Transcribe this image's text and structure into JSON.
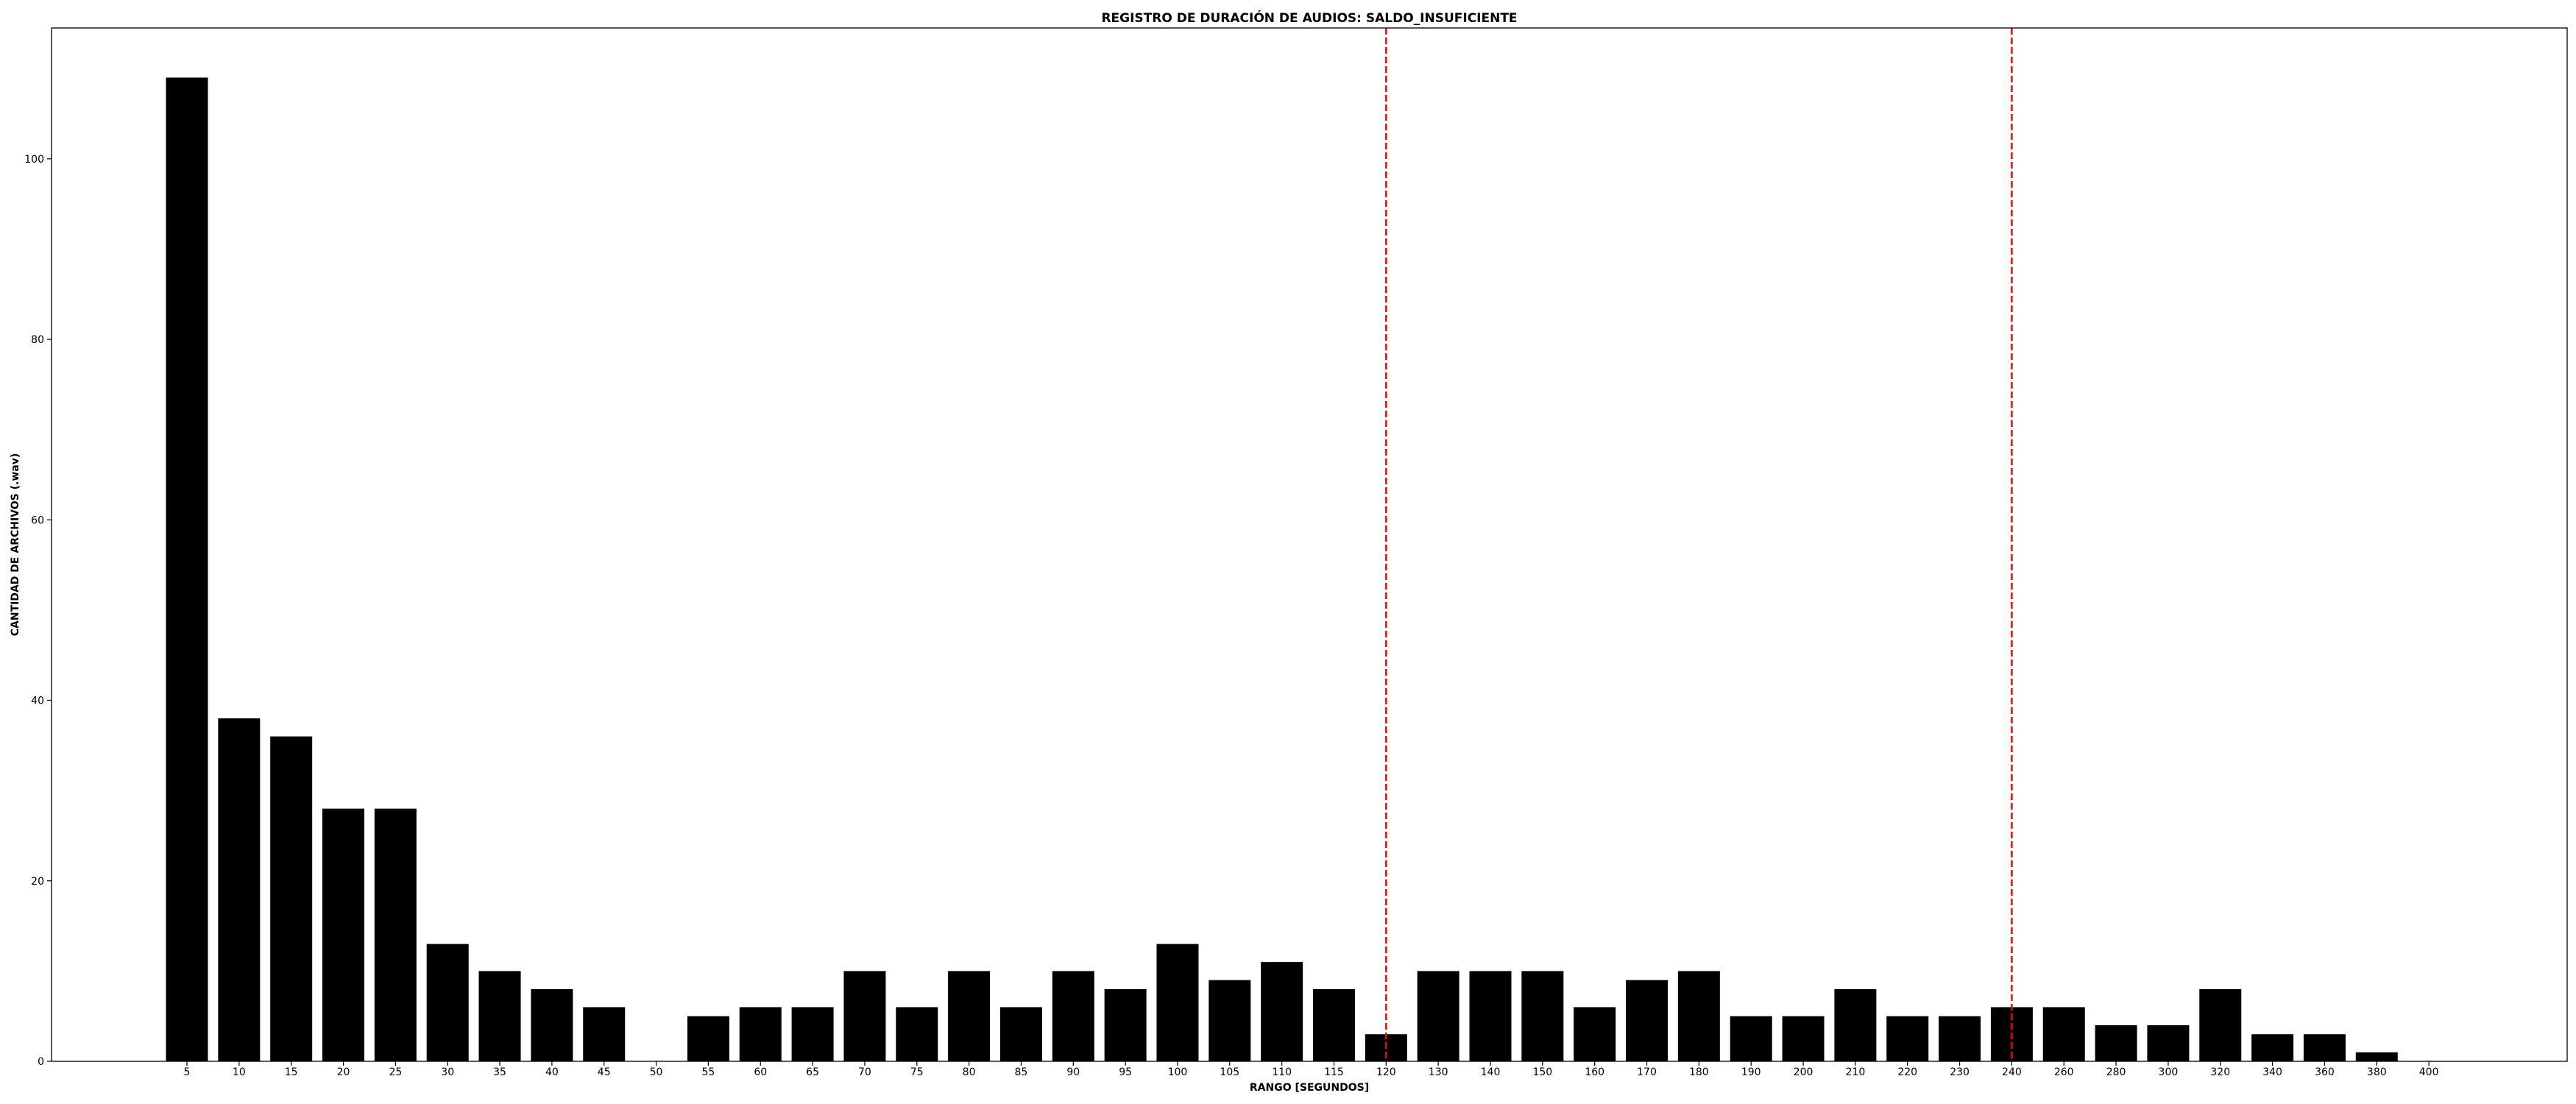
{
  "chart_data": {
    "type": "bar",
    "title": "REGISTRO DE DURACIÓN DE AUDIOS: SALDO_INSUFICIENTE",
    "xlabel": "RANGO [SEGUNDOS]",
    "ylabel": "CANTIDAD DE ARCHIVOS (.wav)",
    "categories": [
      "5",
      "10",
      "15",
      "20",
      "25",
      "30",
      "35",
      "40",
      "45",
      "50",
      "55",
      "60",
      "65",
      "70",
      "75",
      "80",
      "85",
      "90",
      "95",
      "100",
      "105",
      "110",
      "115",
      "120",
      "130",
      "140",
      "150",
      "160",
      "170",
      "180",
      "190",
      "200",
      "210",
      "220",
      "230",
      "240",
      "260",
      "280",
      "300",
      "320",
      "340",
      "360",
      "380",
      "400"
    ],
    "values": [
      109,
      38,
      36,
      28,
      28,
      13,
      10,
      8,
      6,
      0,
      5,
      6,
      6,
      10,
      6,
      10,
      6,
      10,
      8,
      13,
      9,
      11,
      8,
      3,
      10,
      10,
      10,
      6,
      9,
      10,
      5,
      5,
      8,
      5,
      5,
      6,
      6,
      4,
      4,
      8,
      3,
      3,
      1,
      0
    ],
    "yticks": [
      0,
      20,
      40,
      60,
      80,
      100
    ],
    "ylim": [
      0,
      114.5
    ],
    "bar_color": "#000000",
    "reference_lines": [
      {
        "category": "120",
        "color": "#ff0000",
        "style": "dashed"
      },
      {
        "category": "240",
        "color": "#ff0000",
        "style": "dashed"
      }
    ],
    "grid": false,
    "legend": false
  }
}
